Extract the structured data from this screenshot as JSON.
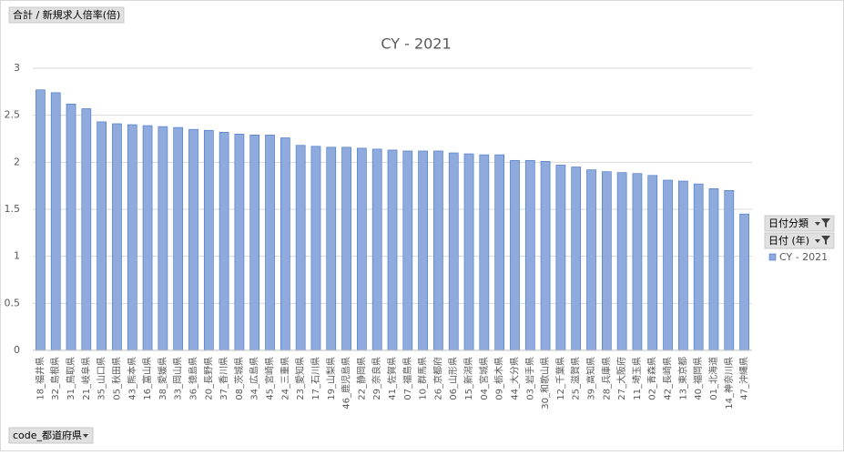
{
  "chart_data": {
    "type": "bar",
    "title": "CY - 2021",
    "categories": [
      "18_福井県",
      "32_島根県",
      "31_鳥取県",
      "21_岐阜県",
      "35_山口県",
      "05_秋田県",
      "43_熊本県",
      "16_富山県",
      "38_愛媛県",
      "33_岡山県",
      "36_徳島県",
      "20_長野県",
      "37_香川県",
      "08_茨城県",
      "34_広島県",
      "45_宮崎県",
      "24_三重県",
      "23_愛知県",
      "17_石川県",
      "19_山梨県",
      "46_鹿児島県",
      "22_静岡県",
      "29_奈良県",
      "41_佐賀県",
      "07_福島県",
      "10_群馬県",
      "26_京都府",
      "06_山形県",
      "15_新潟県",
      "04_宮城県",
      "09_栃木県",
      "44_大分県",
      "03_岩手県",
      "30_和歌山県",
      "12_千葉県",
      "25_滋賀県",
      "39_高知県",
      "28_兵庫県",
      "27_大阪府",
      "11_埼玉県",
      "02_青森県",
      "42_長崎県",
      "13_東京都",
      "40_福岡県",
      "01_北海道",
      "14_神奈川県",
      "47_沖縄県"
    ],
    "series": [
      {
        "name": "CY - 2021",
        "color": "#8faadc",
        "values": [
          2.77,
          2.74,
          2.62,
          2.57,
          2.43,
          2.41,
          2.4,
          2.39,
          2.38,
          2.37,
          2.35,
          2.34,
          2.32,
          2.3,
          2.29,
          2.29,
          2.26,
          2.18,
          2.17,
          2.16,
          2.16,
          2.15,
          2.14,
          2.13,
          2.12,
          2.12,
          2.12,
          2.1,
          2.09,
          2.08,
          2.08,
          2.02,
          2.02,
          2.01,
          1.97,
          1.95,
          1.92,
          1.9,
          1.89,
          1.88,
          1.86,
          1.81,
          1.8,
          1.77,
          1.72,
          1.7,
          1.45
        ]
      }
    ],
    "ylim": [
      0,
      3
    ],
    "yticks": [
      0,
      0.5,
      1,
      1.5,
      2,
      2.5,
      3
    ],
    "grid": true
  },
  "pivot_fields": {
    "value_field": "合計 / 新規求人倍率(倍)",
    "legend_fields": [
      "日付分類",
      "日付 (年)"
    ],
    "axis_field": "code_都道府県"
  }
}
